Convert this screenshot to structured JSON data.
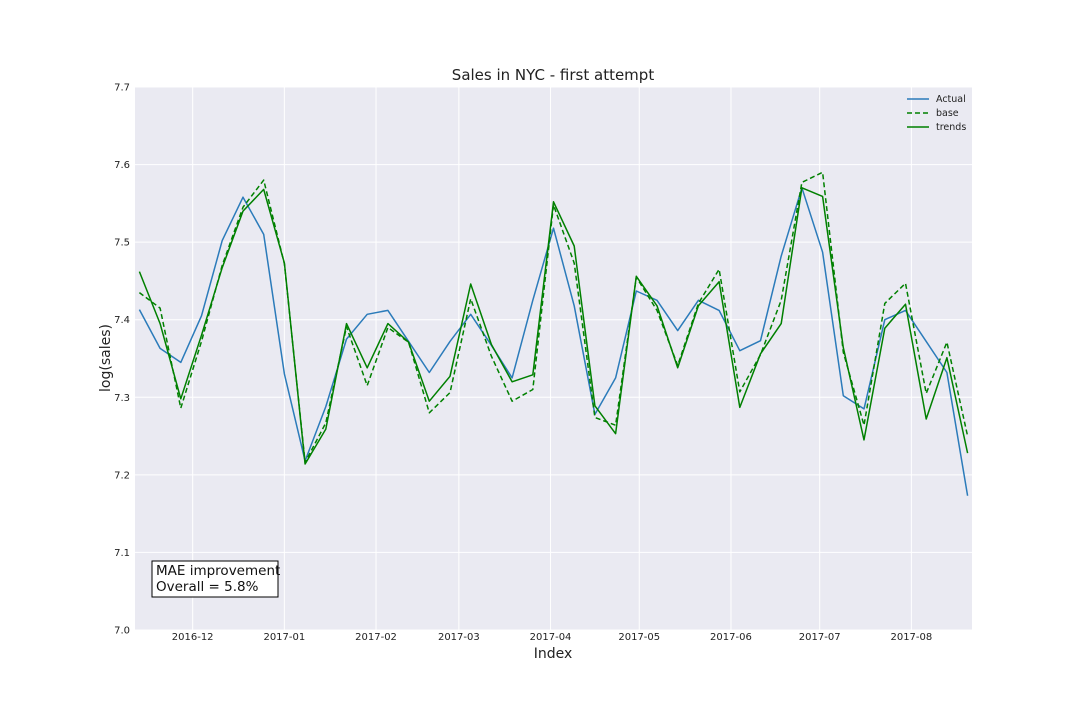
{
  "chart_data": {
    "type": "line",
    "title": "Sales in NYC - first attempt",
    "xlabel": "Index",
    "ylabel": "log(sales)",
    "ylim": [
      7.0,
      7.7
    ],
    "yticks": [
      "7.0",
      "7.1",
      "7.2",
      "7.3",
      "7.4",
      "7.5",
      "7.6",
      "7.7"
    ],
    "xticks": [
      "2016-12",
      "2017-01",
      "2017-02",
      "2017-03",
      "2017-04",
      "2017-05",
      "2017-06",
      "2017-07",
      "2017-08"
    ],
    "x": [
      "2016-11-13",
      "2016-11-20",
      "2016-11-27",
      "2016-12-04",
      "2016-12-11",
      "2016-12-18",
      "2016-12-25",
      "2017-01-01",
      "2017-01-08",
      "2017-01-15",
      "2017-01-22",
      "2017-01-29",
      "2017-02-05",
      "2017-02-12",
      "2017-02-19",
      "2017-02-26",
      "2017-03-05",
      "2017-03-12",
      "2017-03-19",
      "2017-03-26",
      "2017-04-02",
      "2017-04-09",
      "2017-04-16",
      "2017-04-23",
      "2017-04-30",
      "2017-05-07",
      "2017-05-14",
      "2017-05-21",
      "2017-05-28",
      "2017-06-04",
      "2017-06-11",
      "2017-06-18",
      "2017-06-25",
      "2017-07-02",
      "2017-07-09",
      "2017-07-16",
      "2017-07-23",
      "2017-07-30",
      "2017-08-06",
      "2017-08-13",
      "2017-08-20"
    ],
    "grid": true,
    "legend_position": "top-right",
    "series": [
      {
        "name": "Actual",
        "color": "#2b7bba",
        "dash": "solid",
        "values": [
          7.413,
          7.363,
          7.345,
          7.405,
          7.502,
          7.558,
          7.51,
          7.33,
          7.218,
          7.288,
          7.375,
          7.407,
          7.412,
          7.372,
          7.332,
          7.372,
          7.407,
          7.367,
          7.325,
          7.425,
          7.518,
          7.418,
          7.278,
          7.325,
          7.437,
          7.425,
          7.386,
          7.425,
          7.412,
          7.36,
          7.373,
          7.482,
          7.57,
          7.487,
          7.302,
          7.285,
          7.4,
          7.412,
          7.372,
          7.332,
          7.173
        ]
      },
      {
        "name": "base",
        "color": "#008000",
        "dash": "dashed",
        "values": [
          7.435,
          7.415,
          7.286,
          7.372,
          7.47,
          7.545,
          7.58,
          7.472,
          7.216,
          7.267,
          7.391,
          7.315,
          7.39,
          7.371,
          7.28,
          7.306,
          7.427,
          7.353,
          7.295,
          7.31,
          7.548,
          7.473,
          7.274,
          7.264,
          7.455,
          7.412,
          7.341,
          7.421,
          7.465,
          7.307,
          7.355,
          7.425,
          7.577,
          7.59,
          7.358,
          7.264,
          7.421,
          7.447,
          7.305,
          7.371,
          7.25
        ]
      },
      {
        "name": "trends",
        "color": "#008000",
        "dash": "solid",
        "values": [
          7.462,
          7.395,
          7.298,
          7.38,
          7.467,
          7.54,
          7.568,
          7.473,
          7.214,
          7.259,
          7.395,
          7.338,
          7.395,
          7.371,
          7.295,
          7.327,
          7.446,
          7.368,
          7.32,
          7.329,
          7.552,
          7.495,
          7.289,
          7.253,
          7.456,
          7.418,
          7.338,
          7.418,
          7.449,
          7.287,
          7.356,
          7.395,
          7.57,
          7.559,
          7.364,
          7.245,
          7.389,
          7.42,
          7.272,
          7.351,
          7.228
        ]
      }
    ],
    "annotation": {
      "line1": "MAE improvement",
      "line2": "Overall = 5.8%"
    }
  }
}
